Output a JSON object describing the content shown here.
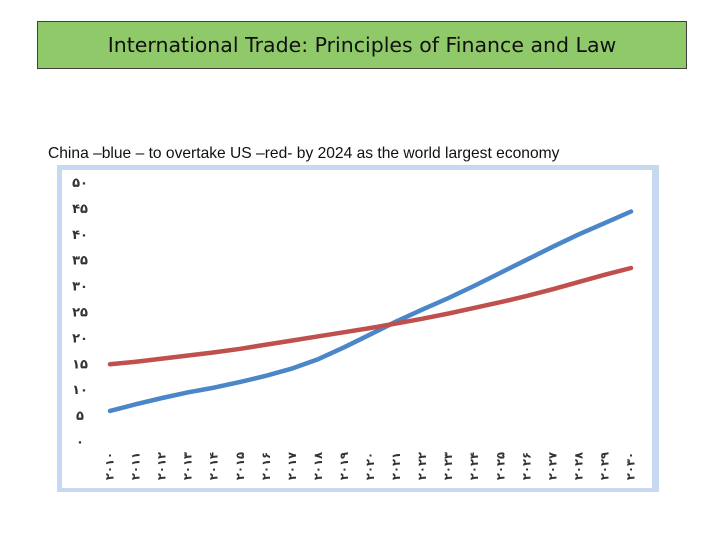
{
  "slide": {
    "title": "International Trade: Principles of  Finance  and Law",
    "caption": "China –blue – to overtake US –red- by 2024 as the world largest economy"
  },
  "chart_data": {
    "type": "line",
    "title": "",
    "xlabel": "",
    "ylabel": "",
    "categories": [
      "2010",
      "2011",
      "2012",
      "2013",
      "2014",
      "2015",
      "2016",
      "2017",
      "2018",
      "2019",
      "2020",
      "2021",
      "2022",
      "2023",
      "2024",
      "2025",
      "2026",
      "2027",
      "2028",
      "2029",
      "2030"
    ],
    "x_tick_labels": [
      "۲۰۱۰",
      "۲۰۱۱",
      "۲۰۱۲",
      "۲۰۱۳",
      "۲۰۱۴",
      "۲۰۱۵",
      "۲۰۱۶",
      "۲۰۱۷",
      "۲۰۱۸",
      "۲۰۱۹",
      "۲۰۲۰",
      "۲۰۲۱",
      "۲۰۲۲",
      "۲۰۲۳",
      "۲۰۲۴",
      "۲۰۲۵",
      "۲۰۲۶",
      "۲۰۲۷",
      "۲۰۲۸",
      "۲۰۲۹",
      "۲۰۳۰"
    ],
    "y_ticks": [
      0,
      5,
      10,
      15,
      20,
      25,
      30,
      35,
      40,
      45,
      50
    ],
    "y_tick_labels": [
      "۰",
      "۵",
      "۱۰",
      "۱۵",
      "۲۰",
      "۲۵",
      "۳۰",
      "۳۵",
      "۴۰",
      "۴۵",
      "۵۰"
    ],
    "ylim": [
      0,
      50
    ],
    "grid": false,
    "series": [
      {
        "color": "#4a86c8",
        "values": [
          6,
          7.3,
          8.5,
          9.6,
          10.5,
          11.6,
          12.8,
          14.2,
          16,
          18.3,
          20.8,
          23.3,
          25.6,
          27.8,
          30.2,
          32.7,
          35.2,
          37.7,
          40.1,
          42.3,
          44.5
        ]
      },
      {
        "color": "#c0504d",
        "values": [
          15,
          15.5,
          16.1,
          16.7,
          17.3,
          18,
          18.8,
          19.6,
          20.4,
          21.2,
          22,
          22.9,
          23.8,
          24.8,
          25.9,
          27,
          28.2,
          29.5,
          30.9,
          32.3,
          33.6
        ]
      }
    ]
  }
}
